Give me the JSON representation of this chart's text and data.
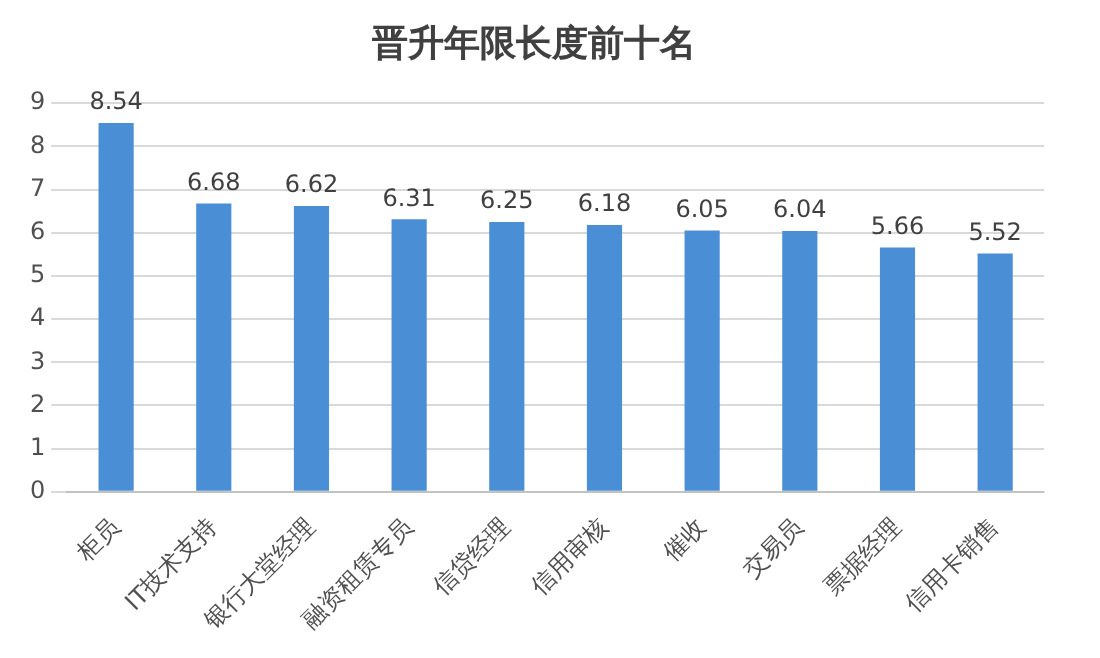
{
  "chart_data": {
    "type": "bar",
    "title": "晋升年限长度前十名",
    "categories": [
      "柜员",
      "IT技术支持",
      "银行大堂经理",
      "融资租赁专员",
      "信贷经理",
      "信用审核",
      "催收",
      "交易员",
      "票据经理",
      "信用卡销售"
    ],
    "values": [
      8.54,
      6.68,
      6.62,
      6.31,
      6.25,
      6.18,
      6.05,
      6.04,
      5.66,
      5.52
    ],
    "color": "#4a8fd6",
    "ylim": [
      0,
      9
    ],
    "yticks": [
      0,
      1,
      2,
      3,
      4,
      5,
      6,
      7,
      8,
      9
    ],
    "grid": "y",
    "data_labels": true,
    "legend": false
  }
}
